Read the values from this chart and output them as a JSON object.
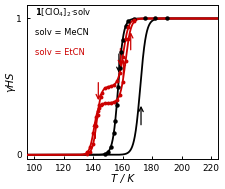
{
  "legend_line1": "1[ClO₄]₂·solv",
  "legend_black": "solv = MeCN",
  "legend_red": "solv = EtCN",
  "xlabel": "T / K",
  "ylabel": "γHS",
  "xlim": [
    95,
    225
  ],
  "ylim": [
    -0.03,
    1.1
  ],
  "xticks": [
    100,
    120,
    140,
    160,
    180,
    200,
    220
  ],
  "yticks": [
    0,
    1
  ],
  "background": "#ffffff",
  "black_color": "#000000",
  "red_color": "#cc0000"
}
